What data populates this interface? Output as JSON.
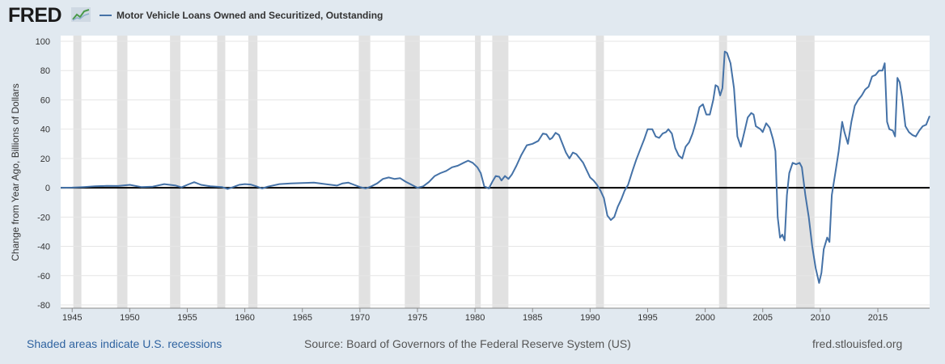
{
  "header": {
    "logo_text": "FRED",
    "logo_icon": "sparkline-chart-icon",
    "series_name": "Motor Vehicle Loans Owned and Securitized, Outstanding"
  },
  "footer": {
    "recession_note": "Shaded areas indicate U.S. recessions",
    "source": "Source: Board of Governors of the Federal Reserve System (US)",
    "site": "fred.stlouisfed.org"
  },
  "colors": {
    "line": "#4572a7",
    "recession": "#e1e1e1",
    "page_bg": "#e1e9f0",
    "plot_bg": "#ffffff"
  },
  "chart_data": {
    "type": "line",
    "title": "",
    "xlabel": "",
    "ylabel": "Change from Year Ago, Billions of Dollars",
    "xlim": [
      1944,
      2019.5
    ],
    "ylim": [
      -80,
      100
    ],
    "x_ticks": [
      1945,
      1950,
      1955,
      1960,
      1965,
      1970,
      1975,
      1980,
      1985,
      1990,
      1995,
      2000,
      2005,
      2010,
      2015
    ],
    "y_ticks": [
      -80,
      -60,
      -40,
      -20,
      0,
      20,
      40,
      60,
      80,
      100
    ],
    "grid": "horizontal",
    "legend": "top-left",
    "recessions": [
      [
        1945.1,
        1945.8
      ],
      [
        1948.9,
        1949.8
      ],
      [
        1953.5,
        1954.4
      ],
      [
        1957.6,
        1958.3
      ],
      [
        1960.3,
        1961.1
      ],
      [
        1969.9,
        1970.9
      ],
      [
        1973.9,
        1975.2
      ],
      [
        1980.0,
        1980.5
      ],
      [
        1981.5,
        1982.9
      ],
      [
        1990.5,
        1991.2
      ],
      [
        2001.2,
        2001.9
      ],
      [
        2007.9,
        2009.5
      ]
    ],
    "series": [
      {
        "name": "Motor Vehicle Loans Owned and Securitized, Outstanding",
        "points": [
          [
            1944.0,
            0.0
          ],
          [
            1945.0,
            0.1
          ],
          [
            1946.0,
            0.5
          ],
          [
            1947.0,
            1.0
          ],
          [
            1948.0,
            1.3
          ],
          [
            1949.0,
            1.2
          ],
          [
            1950.0,
            2.0
          ],
          [
            1951.0,
            0.5
          ],
          [
            1952.0,
            0.8
          ],
          [
            1953.0,
            2.5
          ],
          [
            1954.0,
            1.5
          ],
          [
            1954.5,
            0.3
          ],
          [
            1955.0,
            2.0
          ],
          [
            1955.6,
            3.8
          ],
          [
            1956.2,
            2.0
          ],
          [
            1957.0,
            1.0
          ],
          [
            1958.0,
            0.5
          ],
          [
            1958.5,
            -0.8
          ],
          [
            1959.0,
            0.5
          ],
          [
            1959.5,
            2.0
          ],
          [
            1960.0,
            2.5
          ],
          [
            1960.5,
            2.2
          ],
          [
            1961.0,
            1.0
          ],
          [
            1961.5,
            -0.5
          ],
          [
            1962.0,
            0.8
          ],
          [
            1963.0,
            2.5
          ],
          [
            1964.0,
            3.0
          ],
          [
            1965.0,
            3.2
          ],
          [
            1966.0,
            3.5
          ],
          [
            1967.0,
            2.5
          ],
          [
            1968.0,
            1.5
          ],
          [
            1968.5,
            3.0
          ],
          [
            1969.0,
            3.5
          ],
          [
            1969.5,
            2.0
          ],
          [
            1970.0,
            0.5
          ],
          [
            1970.5,
            -0.5
          ],
          [
            1971.0,
            1.0
          ],
          [
            1971.5,
            3.0
          ],
          [
            1972.0,
            6.0
          ],
          [
            1972.5,
            7.0
          ],
          [
            1973.0,
            6.0
          ],
          [
            1973.5,
            6.5
          ],
          [
            1974.0,
            4.0
          ],
          [
            1974.5,
            2.0
          ],
          [
            1975.0,
            0.0
          ],
          [
            1975.5,
            1.0
          ],
          [
            1976.0,
            4.0
          ],
          [
            1976.5,
            8.0
          ],
          [
            1977.0,
            10.0
          ],
          [
            1977.5,
            11.5
          ],
          [
            1978.0,
            14.0
          ],
          [
            1978.5,
            15.0
          ],
          [
            1979.0,
            17.0
          ],
          [
            1979.4,
            18.5
          ],
          [
            1979.8,
            17.0
          ],
          [
            1980.2,
            14.0
          ],
          [
            1980.5,
            10.0
          ],
          [
            1980.8,
            1.0
          ],
          [
            1981.2,
            -0.5
          ],
          [
            1981.5,
            4.0
          ],
          [
            1981.8,
            8.0
          ],
          [
            1982.1,
            7.5
          ],
          [
            1982.3,
            5.0
          ],
          [
            1982.6,
            8.0
          ],
          [
            1982.9,
            6.0
          ],
          [
            1983.2,
            9.0
          ],
          [
            1983.6,
            15.0
          ],
          [
            1984.0,
            22.0
          ],
          [
            1984.5,
            29.0
          ],
          [
            1985.0,
            30.0
          ],
          [
            1985.5,
            32.0
          ],
          [
            1985.9,
            37.0
          ],
          [
            1986.2,
            36.5
          ],
          [
            1986.5,
            33.0
          ],
          [
            1986.7,
            34.0
          ],
          [
            1987.0,
            37.5
          ],
          [
            1987.3,
            36.0
          ],
          [
            1987.6,
            30.0
          ],
          [
            1987.9,
            24.0
          ],
          [
            1988.2,
            20.0
          ],
          [
            1988.5,
            24.0
          ],
          [
            1988.8,
            23.0
          ],
          [
            1989.1,
            20.0
          ],
          [
            1989.4,
            17.0
          ],
          [
            1989.7,
            12.0
          ],
          [
            1990.0,
            7.0
          ],
          [
            1990.3,
            5.0
          ],
          [
            1990.6,
            2.0
          ],
          [
            1990.9,
            -2.0
          ],
          [
            1991.2,
            -7.0
          ],
          [
            1991.5,
            -19.0
          ],
          [
            1991.8,
            -22.0
          ],
          [
            1992.1,
            -20.0
          ],
          [
            1992.4,
            -13.0
          ],
          [
            1992.7,
            -8.0
          ],
          [
            1993.0,
            -2.0
          ],
          [
            1993.3,
            2.0
          ],
          [
            1993.7,
            12.0
          ],
          [
            1994.0,
            19.0
          ],
          [
            1994.4,
            27.0
          ],
          [
            1994.7,
            33.0
          ],
          [
            1995.0,
            40.0
          ],
          [
            1995.4,
            40.0
          ],
          [
            1995.7,
            35.0
          ],
          [
            1996.0,
            34.0
          ],
          [
            1996.3,
            37.0
          ],
          [
            1996.6,
            38.0
          ],
          [
            1996.8,
            40.0
          ],
          [
            1997.1,
            37.0
          ],
          [
            1997.4,
            27.0
          ],
          [
            1997.7,
            22.0
          ],
          [
            1998.0,
            20.0
          ],
          [
            1998.3,
            28.0
          ],
          [
            1998.6,
            31.0
          ],
          [
            1998.9,
            37.0
          ],
          [
            1999.2,
            45.0
          ],
          [
            1999.5,
            55.0
          ],
          [
            1999.8,
            57.0
          ],
          [
            2000.1,
            50.0
          ],
          [
            2000.4,
            50.0
          ],
          [
            2000.7,
            60.0
          ],
          [
            2000.9,
            70.0
          ],
          [
            2001.1,
            69.0
          ],
          [
            2001.3,
            63.0
          ],
          [
            2001.5,
            68.0
          ],
          [
            2001.7,
            93.0
          ],
          [
            2001.9,
            92.0
          ],
          [
            2002.2,
            85.0
          ],
          [
            2002.5,
            68.0
          ],
          [
            2002.8,
            35.0
          ],
          [
            2003.1,
            28.0
          ],
          [
            2003.4,
            38.0
          ],
          [
            2003.7,
            48.0
          ],
          [
            2004.0,
            51.0
          ],
          [
            2004.2,
            50.0
          ],
          [
            2004.4,
            42.0
          ],
          [
            2004.8,
            40.0
          ],
          [
            2005.0,
            38.0
          ],
          [
            2005.3,
            44.0
          ],
          [
            2005.6,
            41.0
          ],
          [
            2005.9,
            33.0
          ],
          [
            2006.1,
            25.0
          ],
          [
            2006.3,
            -20.0
          ],
          [
            2006.5,
            -34.0
          ],
          [
            2006.7,
            -32.0
          ],
          [
            2006.9,
            -36.0
          ],
          [
            2007.1,
            -5.0
          ],
          [
            2007.3,
            10.0
          ],
          [
            2007.6,
            17.0
          ],
          [
            2007.9,
            16.0
          ],
          [
            2008.2,
            17.0
          ],
          [
            2008.4,
            14.0
          ],
          [
            2008.7,
            -5.0
          ],
          [
            2009.0,
            -20.0
          ],
          [
            2009.3,
            -40.0
          ],
          [
            2009.6,
            -55.0
          ],
          [
            2009.9,
            -65.0
          ],
          [
            2010.1,
            -58.0
          ],
          [
            2010.3,
            -42.0
          ],
          [
            2010.6,
            -34.0
          ],
          [
            2010.8,
            -37.0
          ],
          [
            2011.0,
            -5.0
          ],
          [
            2011.3,
            10.0
          ],
          [
            2011.6,
            25.0
          ],
          [
            2011.9,
            45.0
          ],
          [
            2012.1,
            38.0
          ],
          [
            2012.4,
            30.0
          ],
          [
            2012.7,
            45.0
          ],
          [
            2013.0,
            56.0
          ],
          [
            2013.3,
            60.0
          ],
          [
            2013.6,
            63.0
          ],
          [
            2013.9,
            67.0
          ],
          [
            2014.2,
            69.0
          ],
          [
            2014.5,
            76.0
          ],
          [
            2014.8,
            77.0
          ],
          [
            2015.1,
            80.0
          ],
          [
            2015.4,
            80.0
          ],
          [
            2015.6,
            85.0
          ],
          [
            2015.8,
            45.0
          ],
          [
            2016.0,
            40.0
          ],
          [
            2016.3,
            39.0
          ],
          [
            2016.5,
            35.0
          ],
          [
            2016.7,
            75.0
          ],
          [
            2016.9,
            72.0
          ],
          [
            2017.1,
            62.0
          ],
          [
            2017.4,
            42.0
          ],
          [
            2017.7,
            38.0
          ],
          [
            2018.0,
            36.0
          ],
          [
            2018.3,
            35.0
          ],
          [
            2018.6,
            39.0
          ],
          [
            2018.9,
            42.0
          ],
          [
            2019.2,
            43.0
          ],
          [
            2019.5,
            49.0
          ]
        ]
      }
    ]
  }
}
